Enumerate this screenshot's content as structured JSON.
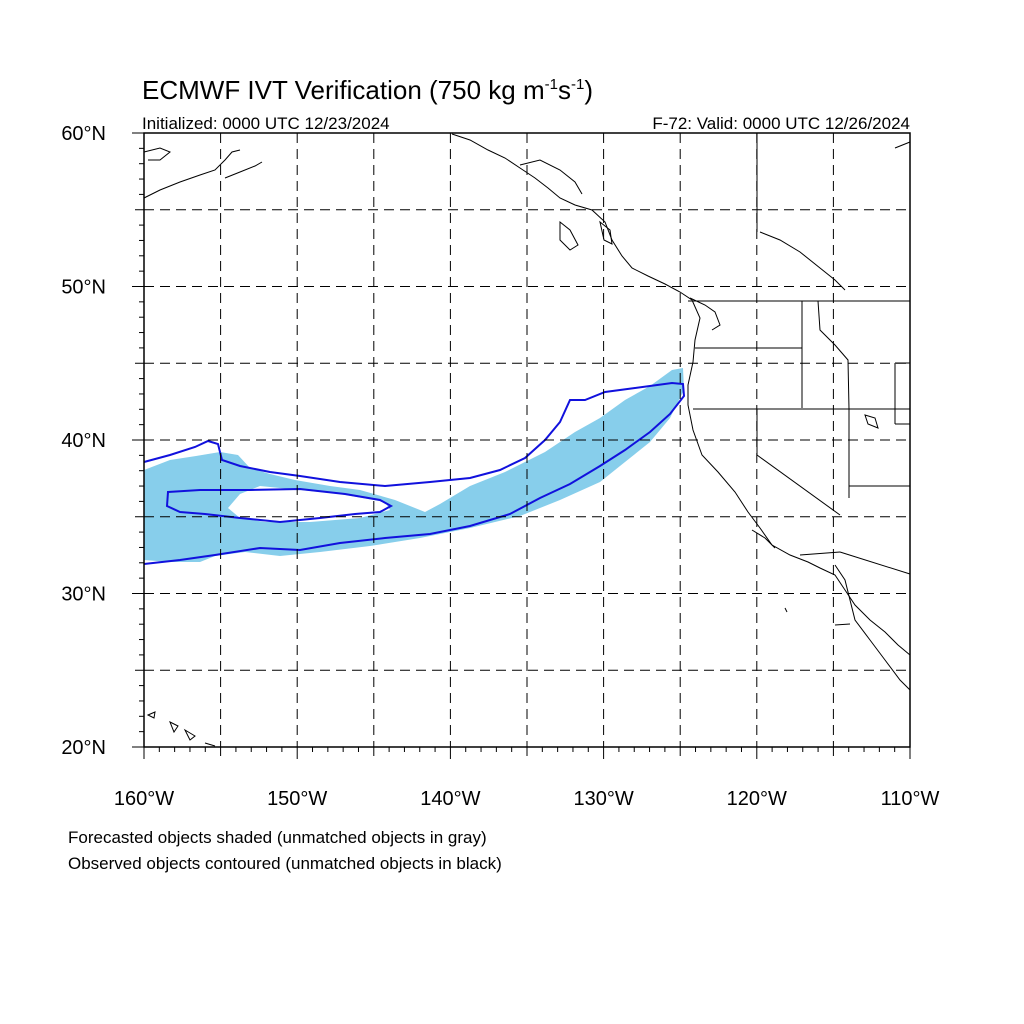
{
  "title": {
    "main": "ECMWF IVT Verification (750 kg m",
    "sup1": "-1",
    "mid": "s",
    "sup2": "-1",
    "end": ")"
  },
  "initialized": "Initialized: 0000 UTC 12/23/2024",
  "valid": "F-72: Valid: 0000 UTC 12/26/2024",
  "lat_labels": [
    "60°N",
    "50°N",
    "40°N",
    "30°N",
    "20°N"
  ],
  "lon_labels": [
    "160°W",
    "150°W",
    "140°W",
    "130°W",
    "120°W",
    "110°W"
  ],
  "footnotes": [
    "Forecasted objects shaded (unmatched objects in gray)",
    "Observed objects contoured (unmatched objects in black)"
  ],
  "colors": {
    "forecast_fill": "#87ceeb",
    "observed_contour": "#1111dd",
    "coastline": "#000000",
    "grid": "#000000"
  },
  "map": {
    "lon_range": [
      -160,
      -110
    ],
    "lat_range": [
      20,
      60
    ],
    "grid_spacing_deg": 5,
    "projection": "cylindrical-equidistant"
  }
}
